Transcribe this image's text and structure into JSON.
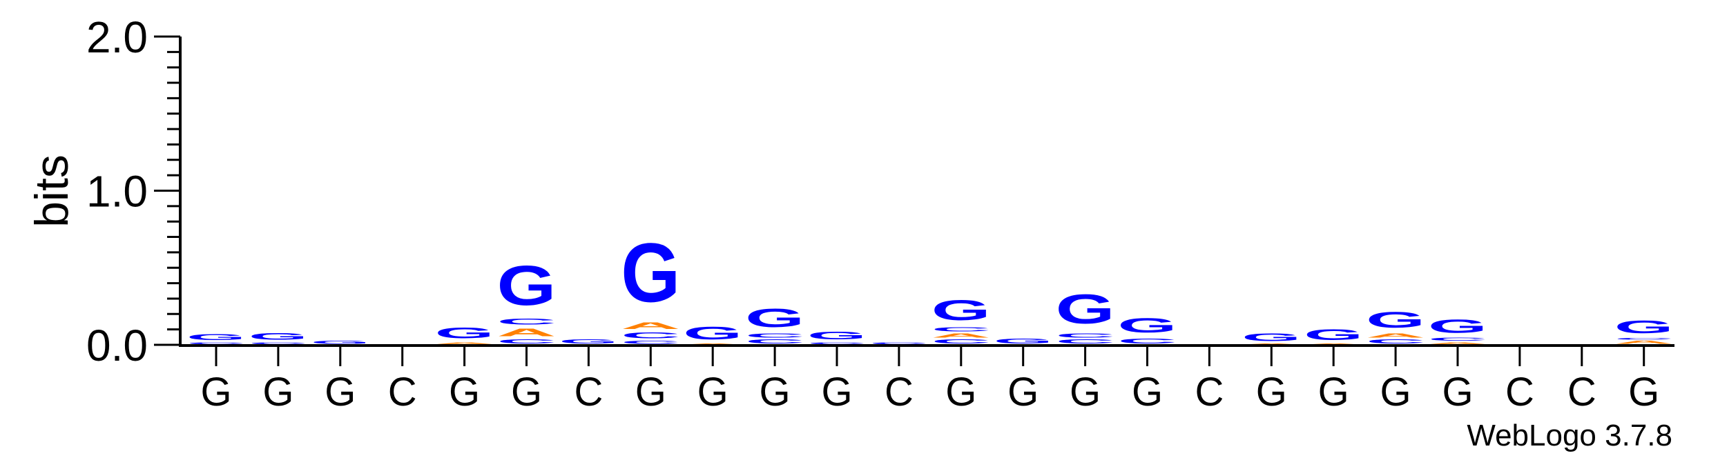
{
  "chart_data": {
    "type": "sequence_logo",
    "title": "",
    "xlabel": "",
    "ylabel": "bits",
    "ylim": [
      0,
      2.0
    ],
    "yticks": [
      {
        "value": 0.0,
        "label": "0.0"
      },
      {
        "value": 1.0,
        "label": "1.0"
      },
      {
        "value": 2.0,
        "label": "2.0"
      }
    ],
    "minor_tick_step": 0.1,
    "grid": false,
    "x_labels": [
      "G",
      "G",
      "G",
      "C",
      "G",
      "G",
      "C",
      "G",
      "G",
      "G",
      "G",
      "C",
      "G",
      "G",
      "G",
      "G",
      "C",
      "G",
      "G",
      "G",
      "G",
      "C",
      "C",
      "G"
    ],
    "colors": {
      "G": "#0000ff",
      "A": "#ff8000",
      "C": "#0000ff",
      "T": "#ff8000"
    },
    "positions": [
      {
        "stack": [
          {
            "letter": "C",
            "bits": 0.02
          },
          {
            "letter": "G",
            "bits": 0.06
          }
        ]
      },
      {
        "stack": [
          {
            "letter": "C",
            "bits": 0.02
          },
          {
            "letter": "G",
            "bits": 0.07
          }
        ]
      },
      {
        "stack": [
          {
            "letter": "G",
            "bits": 0.03
          }
        ]
      },
      {
        "stack": []
      },
      {
        "stack": [
          {
            "letter": "A",
            "bits": 0.02
          },
          {
            "letter": "G",
            "bits": 0.11
          }
        ]
      },
      {
        "stack": [
          {
            "letter": "C",
            "bits": 0.04
          },
          {
            "letter": "A",
            "bits": 0.08
          },
          {
            "letter": "C",
            "bits": 0.06
          },
          {
            "letter": "G",
            "bits": 0.41
          }
        ]
      },
      {
        "stack": [
          {
            "letter": "G",
            "bits": 0.04
          }
        ]
      },
      {
        "stack": [
          {
            "letter": "C",
            "bits": 0.03
          },
          {
            "letter": "C",
            "bits": 0.06
          },
          {
            "letter": "A",
            "bits": 0.07
          },
          {
            "letter": "G",
            "bits": 0.61
          }
        ]
      },
      {
        "stack": [
          {
            "letter": "A",
            "bits": 0.01
          },
          {
            "letter": "G",
            "bits": 0.13
          }
        ]
      },
      {
        "stack": [
          {
            "letter": "C",
            "bits": 0.04
          },
          {
            "letter": "C",
            "bits": 0.04
          },
          {
            "letter": "G",
            "bits": 0.19
          }
        ]
      },
      {
        "stack": [
          {
            "letter": "C",
            "bits": 0.02
          },
          {
            "letter": "G",
            "bits": 0.08
          }
        ]
      },
      {
        "stack": [
          {
            "letter": "C",
            "bits": 0.02
          }
        ]
      },
      {
        "stack": [
          {
            "letter": "C",
            "bits": 0.04
          },
          {
            "letter": "A",
            "bits": 0.04
          },
          {
            "letter": "C",
            "bits": 0.04
          },
          {
            "letter": "G",
            "bits": 0.21
          }
        ]
      },
      {
        "stack": [
          {
            "letter": "G",
            "bits": 0.05
          }
        ]
      },
      {
        "stack": [
          {
            "letter": "C",
            "bits": 0.04
          },
          {
            "letter": "C",
            "bits": 0.04
          },
          {
            "letter": "G",
            "bits": 0.3
          }
        ]
      },
      {
        "stack": [
          {
            "letter": "C",
            "bits": 0.05
          },
          {
            "letter": "G",
            "bits": 0.15
          }
        ]
      },
      {
        "stack": []
      },
      {
        "stack": [
          {
            "letter": "A",
            "bits": 0.01
          },
          {
            "letter": "G",
            "bits": 0.08
          }
        ]
      },
      {
        "stack": [
          {
            "letter": "A",
            "bits": 0.01
          },
          {
            "letter": "G",
            "bits": 0.11
          }
        ]
      },
      {
        "stack": [
          {
            "letter": "C",
            "bits": 0.04
          },
          {
            "letter": "A",
            "bits": 0.04
          },
          {
            "letter": "G",
            "bits": 0.16
          }
        ]
      },
      {
        "stack": [
          {
            "letter": "A",
            "bits": 0.02
          },
          {
            "letter": "C",
            "bits": 0.03
          },
          {
            "letter": "G",
            "bits": 0.14
          }
        ]
      },
      {
        "stack": []
      },
      {
        "stack": []
      },
      {
        "stack": [
          {
            "letter": "A",
            "bits": 0.03
          },
          {
            "letter": "C",
            "bits": 0.02
          },
          {
            "letter": "G",
            "bits": 0.13
          }
        ]
      }
    ]
  },
  "credit": "WebLogo 3.7.8"
}
